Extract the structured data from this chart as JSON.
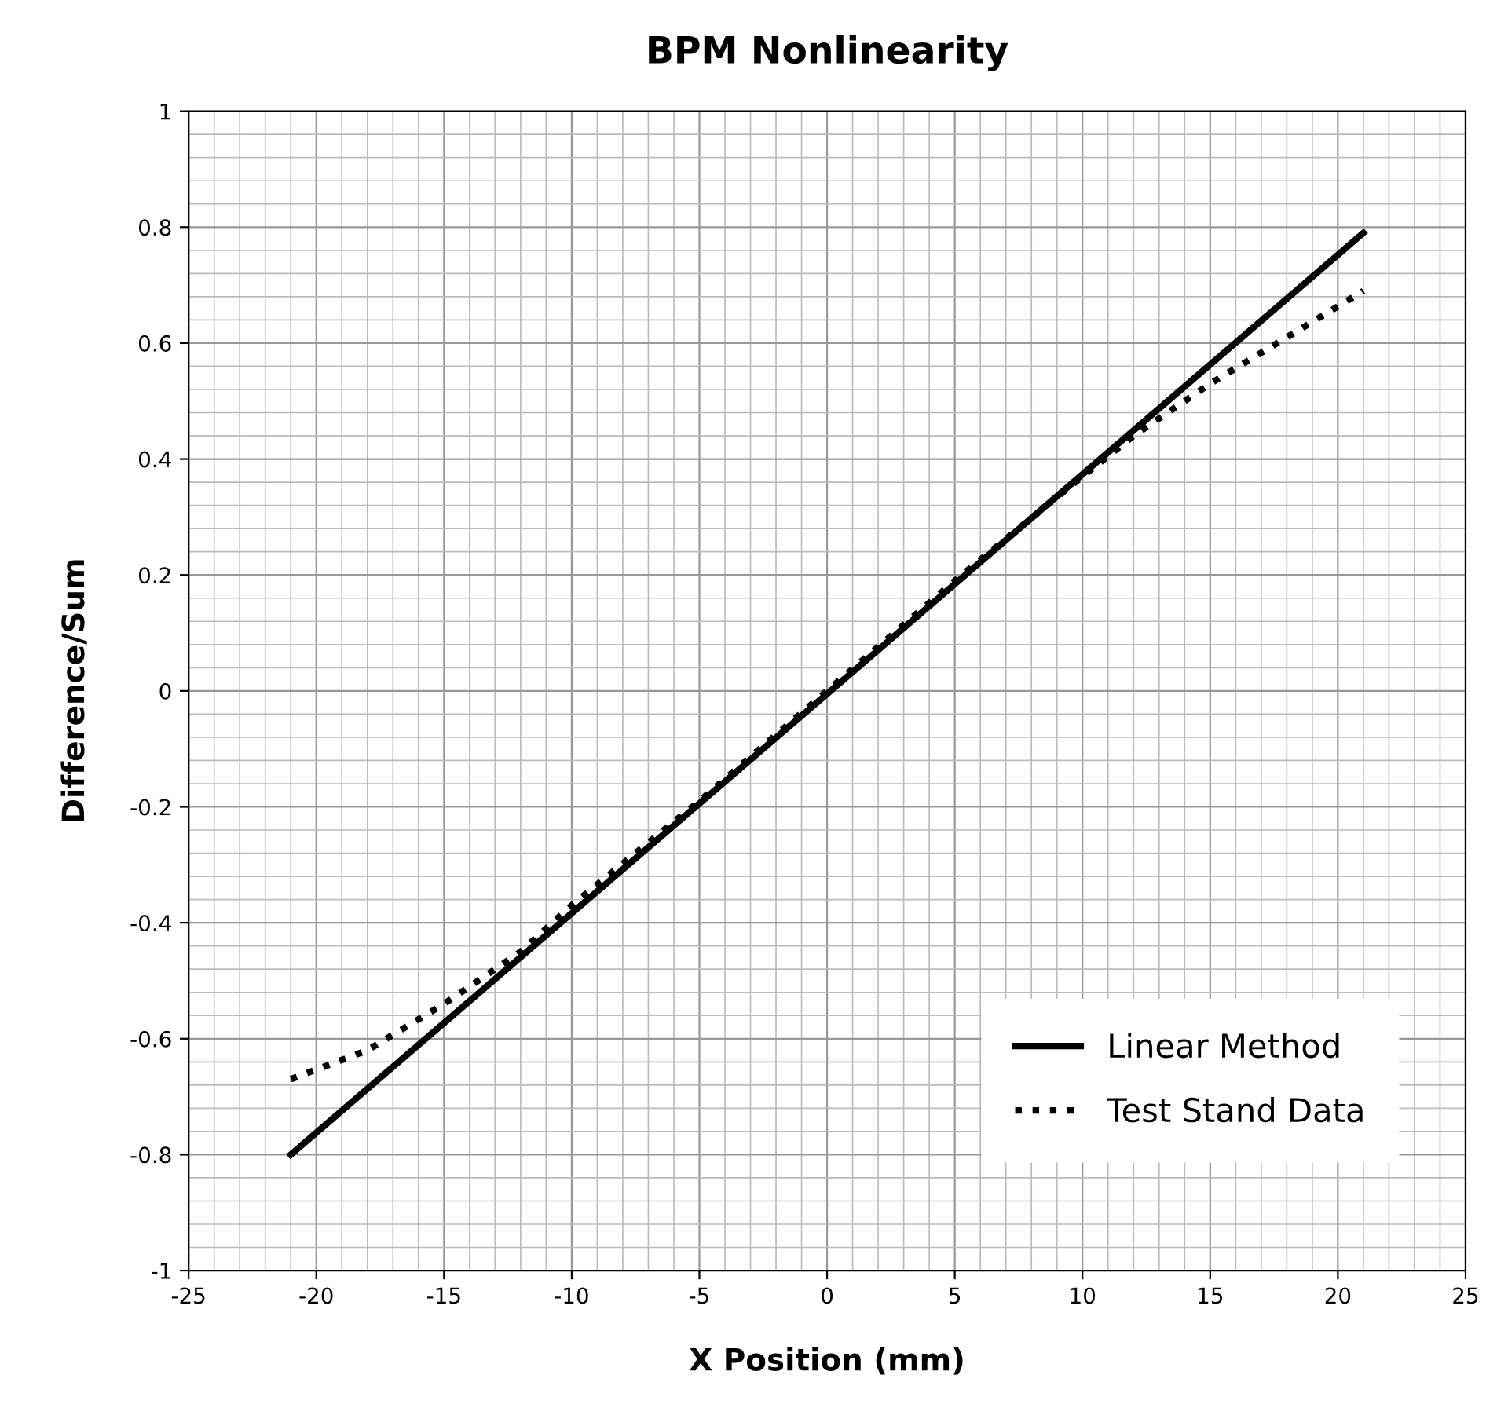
{
  "chart_data": {
    "type": "line",
    "title": "BPM Nonlinearity",
    "xlabel": "X Position (mm)",
    "ylabel": "Difference/Sum",
    "xlim": [
      -25,
      25
    ],
    "xticks": [
      -25,
      -20,
      -15,
      -10,
      -5,
      0,
      5,
      10,
      15,
      20,
      25
    ],
    "ylim": [
      -1,
      1
    ],
    "yticks": [
      -1,
      -0.8,
      -0.6,
      -0.4,
      -0.2,
      0,
      0.2,
      0.4,
      0.6,
      0.8,
      1
    ],
    "grid": true,
    "legend": "bottom right",
    "series": [
      {
        "name": "Linear Method",
        "color": "#000000",
        "line_style": "solid",
        "x": [
          -21,
          21
        ],
        "values": [
          -0.8,
          0.79
        ]
      },
      {
        "name": "Test Stand Data",
        "color": "#000000",
        "line_style": "dotted",
        "x": [
          -21,
          -18,
          -15,
          -12,
          -10,
          -5,
          0,
          5,
          10,
          12,
          15,
          18,
          21
        ],
        "values": [
          -0.67,
          -0.62,
          -0.54,
          -0.45,
          -0.37,
          -0.19,
          0,
          0.19,
          0.37,
          0.44,
          0.53,
          0.61,
          0.69
        ]
      }
    ]
  }
}
